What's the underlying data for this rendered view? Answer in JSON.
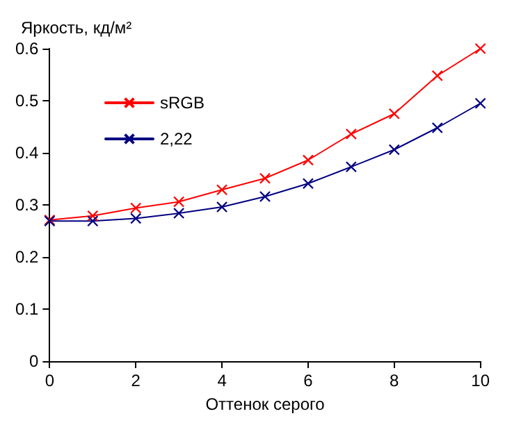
{
  "chart_data": {
    "type": "line",
    "ylabel": "Яркость, кд/м²",
    "xlabel": "Оттенок серого",
    "x": [
      0,
      1,
      2,
      3,
      4,
      5,
      6,
      7,
      8,
      9,
      10
    ],
    "series": [
      {
        "name": "sRGB",
        "color": "#ff0000",
        "values": [
          0.271,
          0.279,
          0.294,
          0.306,
          0.329,
          0.351,
          0.386,
          0.436,
          0.475,
          0.548,
          0.6
        ]
      },
      {
        "name": "2,22",
        "color": "#000080",
        "values": [
          0.269,
          0.269,
          0.274,
          0.284,
          0.296,
          0.316,
          0.341,
          0.373,
          0.406,
          0.448,
          0.495
        ]
      }
    ],
    "xlim": [
      0,
      10
    ],
    "xticks": [
      0,
      2,
      4,
      6,
      8,
      10
    ],
    "ylim": [
      0,
      0.6
    ],
    "yticks": [
      0,
      0.1,
      0.2,
      0.3,
      0.4,
      0.5,
      0.6
    ],
    "grid": false,
    "legend": "top left",
    "marker": "cross",
    "line_style": "solid"
  }
}
